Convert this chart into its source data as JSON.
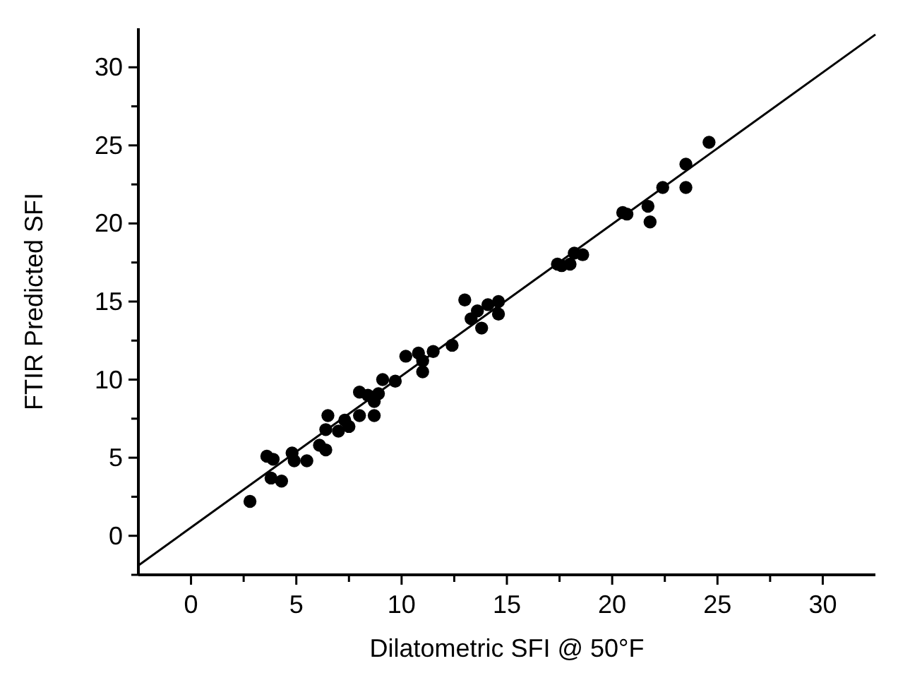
{
  "chart_data": {
    "type": "scatter",
    "xlabel": "Dilatometric SFI @ 50°F",
    "ylabel": "FTIR Predicted SFI",
    "xlim": [
      -2.5,
      32.5
    ],
    "ylim": [
      -2.5,
      32.5
    ],
    "xticks": [
      0,
      {
        "value": 2.5,
        "label": null
      },
      5,
      {
        "value": 7.5,
        "label": null
      },
      10,
      {
        "value": 12.5,
        "label": null
      },
      15,
      {
        "value": 17.5,
        "label": null
      },
      20,
      {
        "value": 22.5,
        "label": null
      },
      25,
      {
        "value": 27.5,
        "label": null
      },
      30
    ],
    "yticks": [
      {
        "value": -2.5,
        "label": null
      },
      0,
      {
        "value": 2.5,
        "label": null
      },
      5,
      {
        "value": 7.5,
        "label": null
      },
      10,
      {
        "value": 12.5,
        "label": null
      },
      15,
      {
        "value": 17.5,
        "label": null
      },
      20,
      {
        "value": 22.5,
        "label": null
      },
      25,
      {
        "value": 27.5,
        "label": null
      },
      30
    ],
    "grid": false,
    "series": [
      {
        "marker": "circle",
        "color": "#000000",
        "x": [
          2.8,
          3.6,
          3.9,
          3.8,
          4.3,
          4.8,
          4.9,
          5.5,
          6.1,
          6.4,
          6.5,
          6.4,
          7.0,
          7.3,
          7.5,
          8.0,
          8.0,
          8.4,
          8.7,
          8.7,
          8.9,
          9.1,
          9.7,
          10.2,
          10.8,
          11.0,
          11.0,
          11.5,
          12.4,
          13.0,
          13.3,
          13.6,
          13.8,
          14.1,
          14.6,
          14.6,
          17.4,
          17.6,
          18.0,
          18.2,
          18.6,
          20.5,
          20.7,
          21.7,
          21.8,
          22.4,
          23.5,
          23.5,
          24.6
        ],
        "values": [
          2.2,
          5.1,
          4.9,
          3.7,
          3.5,
          5.3,
          4.8,
          4.8,
          5.8,
          5.5,
          7.7,
          6.8,
          6.7,
          7.4,
          7.0,
          7.7,
          9.2,
          9.0,
          7.7,
          8.6,
          9.1,
          10.0,
          9.9,
          11.5,
          11.7,
          10.5,
          11.2,
          11.8,
          12.2,
          15.1,
          13.9,
          14.4,
          13.3,
          14.8,
          14.2,
          15.0,
          17.4,
          17.3,
          17.4,
          18.1,
          18.0,
          20.7,
          20.6,
          21.1,
          20.1,
          22.3,
          23.8,
          22.3,
          25.2
        ]
      },
      {
        "type": "line",
        "color": "#000000",
        "x": [
          -2.5,
          32.5
        ],
        "values": [
          -1.9,
          32.1
        ]
      }
    ]
  }
}
